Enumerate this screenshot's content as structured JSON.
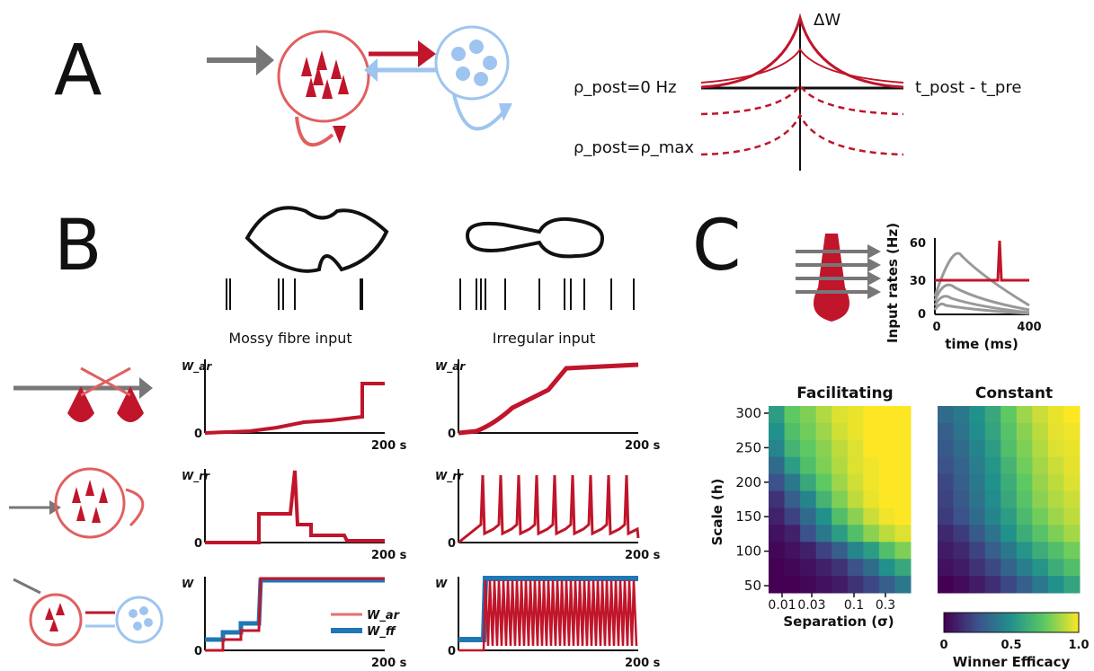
{
  "panel_labels": [
    "A",
    "B",
    "C"
  ],
  "panelA": {
    "delta_w_label": "ΔW",
    "dt_label": "t_post - t_pre",
    "rho_zero_label": "ρ_post=0 Hz",
    "rho_max_label": "ρ_post=ρ_max"
  },
  "panelB": {
    "mossy_label": "Mossy fibre input",
    "irregular_label": "Irregular input",
    "row_ylabels": [
      "W_ar",
      "W_rr",
      "W"
    ],
    "tick_zero": "0",
    "tick_end": "200 s",
    "legend": [
      "W_ar",
      "W_ff"
    ]
  },
  "panelC": {
    "input_ylabel": "Input rates (Hz)",
    "input_xlabel": "time (ms)",
    "input_yticks": [
      "60",
      "30",
      "0"
    ],
    "input_xticks": [
      "0",
      "400"
    ],
    "heatmap_titles": [
      "Facilitating",
      "Constant"
    ],
    "heatmap_ylabel": "Scale (h)",
    "heatmap_xlabel": "Separation (σ)",
    "heatmap_yticks": [
      "300",
      "250",
      "200",
      "150",
      "100",
      "50"
    ],
    "heatmap_xticks": [
      "0.01",
      "0.03",
      "0.1",
      "0.3"
    ],
    "colorbar_label": "Winner Efficacy",
    "colorbar_ticks": [
      "0",
      "0.5",
      "1.0"
    ]
  },
  "colors": {
    "red": "#c0152a",
    "light_red": "#e07070",
    "blue": "#1f77b4",
    "light_blue": "#9ec5f0",
    "gray": "#777777"
  },
  "chart_data": [
    {
      "type": "heatmap",
      "title": "Facilitating",
      "xlabel": "Separation (σ)",
      "ylabel": "Scale (h)",
      "rows_top_to_bottom": [
        [
          0.55,
          0.75,
          0.8,
          0.88,
          0.95,
          0.97,
          1.0,
          1.0,
          1.0
        ],
        [
          0.5,
          0.7,
          0.78,
          0.85,
          0.93,
          0.97,
          1.0,
          1.0,
          1.0
        ],
        [
          0.45,
          0.65,
          0.75,
          0.82,
          0.9,
          0.95,
          1.0,
          1.0,
          1.0
        ],
        [
          0.35,
          0.55,
          0.7,
          0.8,
          0.88,
          0.95,
          0.98,
          1.0,
          1.0
        ],
        [
          0.25,
          0.4,
          0.6,
          0.75,
          0.85,
          0.93,
          0.98,
          1.0,
          1.0
        ],
        [
          0.15,
          0.3,
          0.45,
          0.65,
          0.8,
          0.9,
          0.97,
          1.0,
          1.0
        ],
        [
          0.1,
          0.2,
          0.35,
          0.5,
          0.7,
          0.82,
          0.92,
          0.98,
          1.0
        ],
        [
          0.05,
          0.1,
          0.25,
          0.4,
          0.55,
          0.7,
          0.82,
          0.9,
          0.95
        ],
        [
          0.02,
          0.05,
          0.1,
          0.2,
          0.3,
          0.45,
          0.55,
          0.7,
          0.8
        ],
        [
          0.0,
          0.02,
          0.05,
          0.1,
          0.15,
          0.25,
          0.35,
          0.5,
          0.6
        ],
        [
          0.0,
          0.0,
          0.02,
          0.05,
          0.08,
          0.15,
          0.22,
          0.3,
          0.4
        ]
      ]
    },
    {
      "type": "heatmap",
      "title": "Constant",
      "rows_top_to_bottom": [
        [
          0.35,
          0.4,
          0.5,
          0.6,
          0.75,
          0.85,
          0.92,
          0.97,
          1.0
        ],
        [
          0.3,
          0.38,
          0.48,
          0.58,
          0.72,
          0.82,
          0.9,
          0.96,
          0.98
        ],
        [
          0.28,
          0.35,
          0.45,
          0.55,
          0.7,
          0.8,
          0.88,
          0.95,
          0.97
        ],
        [
          0.25,
          0.32,
          0.42,
          0.52,
          0.65,
          0.78,
          0.86,
          0.92,
          0.96
        ],
        [
          0.22,
          0.3,
          0.4,
          0.5,
          0.62,
          0.75,
          0.84,
          0.9,
          0.95
        ],
        [
          0.2,
          0.28,
          0.38,
          0.48,
          0.6,
          0.72,
          0.82,
          0.88,
          0.92
        ],
        [
          0.18,
          0.25,
          0.35,
          0.45,
          0.55,
          0.68,
          0.78,
          0.85,
          0.9
        ],
        [
          0.12,
          0.18,
          0.28,
          0.38,
          0.5,
          0.62,
          0.72,
          0.8,
          0.86
        ],
        [
          0.08,
          0.12,
          0.2,
          0.3,
          0.4,
          0.52,
          0.62,
          0.7,
          0.78
        ],
        [
          0.05,
          0.08,
          0.15,
          0.22,
          0.32,
          0.42,
          0.52,
          0.62,
          0.7
        ],
        [
          0.0,
          0.03,
          0.08,
          0.14,
          0.22,
          0.3,
          0.4,
          0.5,
          0.58
        ]
      ]
    }
  ]
}
